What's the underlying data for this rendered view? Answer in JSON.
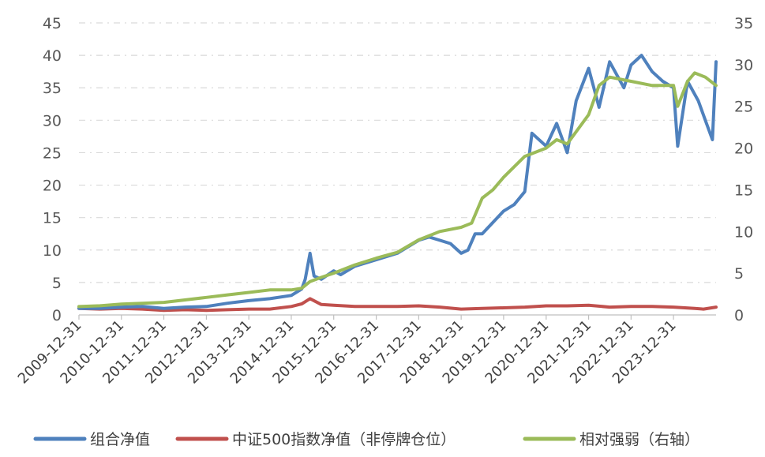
{
  "chart_data": {
    "type": "line",
    "title": "",
    "xlabel": "",
    "ylabel": "",
    "x_tick_labels": [
      "2009-12-31",
      "2010-12-31",
      "2011-12-31",
      "2012-12-31",
      "2013-12-31",
      "2014-12-31",
      "2015-12-31",
      "2016-12-31",
      "2017-12-31",
      "2018-12-31",
      "2019-12-31",
      "2020-12-31",
      "2021-12-31",
      "2022-12-31",
      "2023-12-31"
    ],
    "x_range": [
      "2009-12-31",
      "2024-12-31"
    ],
    "ylim_left": [
      0,
      45
    ],
    "yticks_left": [
      0,
      5,
      10,
      15,
      20,
      25,
      30,
      35,
      40,
      45
    ],
    "ylim_right": [
      0,
      35
    ],
    "yticks_right": [
      0,
      5,
      10,
      15,
      20,
      25,
      30,
      35
    ],
    "grid": true,
    "legend_position": "bottom",
    "series": [
      {
        "name": "组合净值",
        "axis": "left",
        "color": "#4f81bd",
        "x": [
          "2009-12-31",
          "2010-06-30",
          "2010-12-31",
          "2011-06-30",
          "2011-12-31",
          "2012-06-30",
          "2012-12-31",
          "2013-06-30",
          "2013-12-31",
          "2014-06-30",
          "2014-12-31",
          "2015-03-31",
          "2015-04-30",
          "2015-06-10",
          "2015-07-15",
          "2015-09-15",
          "2015-12-31",
          "2016-02-29",
          "2016-06-30",
          "2016-12-31",
          "2017-06-30",
          "2017-12-31",
          "2018-03-31",
          "2018-06-30",
          "2018-09-30",
          "2018-12-31",
          "2019-02-28",
          "2019-04-30",
          "2019-06-30",
          "2019-12-31",
          "2020-03-31",
          "2020-06-30",
          "2020-08-31",
          "2020-12-31",
          "2021-03-31",
          "2021-06-30",
          "2021-09-15",
          "2021-12-31",
          "2022-03-31",
          "2022-06-30",
          "2022-10-31",
          "2022-12-31",
          "2023-03-31",
          "2023-06-30",
          "2023-09-30",
          "2023-12-31",
          "2024-02-05",
          "2024-04-30",
          "2024-07-31",
          "2024-09-30",
          "2024-11-30",
          "2024-12-31"
        ],
        "values": [
          1.0,
          1.0,
          1.2,
          1.3,
          1.0,
          1.2,
          1.3,
          1.8,
          2.2,
          2.5,
          3.0,
          4.0,
          5.5,
          9.5,
          6.0,
          5.5,
          6.8,
          6.2,
          7.5,
          8.5,
          9.5,
          11.5,
          12.0,
          11.5,
          11.0,
          9.5,
          10.0,
          12.5,
          12.5,
          16.0,
          17.0,
          19.0,
          28.0,
          26.0,
          29.5,
          25.0,
          33.0,
          38.0,
          32.0,
          39.0,
          35.0,
          38.5,
          40.0,
          37.5,
          36.0,
          35.0,
          26.0,
          36.0,
          33.0,
          30.0,
          27.0,
          39.0
        ]
      },
      {
        "name": "中证500指数净值（非停牌仓位）",
        "axis": "left",
        "color": "#c0504d",
        "x": [
          "2009-12-31",
          "2010-06-30",
          "2010-12-31",
          "2011-06-30",
          "2011-12-31",
          "2012-06-30",
          "2012-12-31",
          "2013-06-30",
          "2013-12-31",
          "2014-06-30",
          "2014-12-31",
          "2015-03-31",
          "2015-06-10",
          "2015-09-15",
          "2015-12-31",
          "2016-06-30",
          "2016-12-31",
          "2017-06-30",
          "2017-12-31",
          "2018-06-30",
          "2018-12-31",
          "2019-06-30",
          "2019-12-31",
          "2020-06-30",
          "2020-12-31",
          "2021-06-30",
          "2021-12-31",
          "2022-06-30",
          "2022-12-31",
          "2023-06-30",
          "2023-12-31",
          "2024-06-30",
          "2024-09-15",
          "2024-12-31"
        ],
        "values": [
          1.0,
          0.9,
          1.0,
          0.9,
          0.7,
          0.8,
          0.7,
          0.8,
          0.9,
          0.9,
          1.3,
          1.7,
          2.5,
          1.6,
          1.5,
          1.3,
          1.3,
          1.3,
          1.4,
          1.2,
          0.9,
          1.0,
          1.1,
          1.2,
          1.4,
          1.4,
          1.5,
          1.2,
          1.3,
          1.3,
          1.2,
          1.0,
          0.9,
          1.2
        ]
      },
      {
        "name": "相对强弱（右轴）",
        "axis": "right",
        "color": "#9bbb59",
        "x": [
          "2009-12-31",
          "2010-06-30",
          "2010-12-31",
          "2011-06-30",
          "2011-12-31",
          "2012-06-30",
          "2012-12-31",
          "2013-06-30",
          "2013-12-31",
          "2014-06-30",
          "2014-12-31",
          "2015-03-31",
          "2015-06-10",
          "2015-09-15",
          "2015-12-31",
          "2016-06-30",
          "2016-12-31",
          "2017-06-30",
          "2017-12-31",
          "2018-06-30",
          "2018-12-31",
          "2019-03-31",
          "2019-06-30",
          "2019-09-30",
          "2019-12-31",
          "2020-06-30",
          "2020-12-31",
          "2021-03-31",
          "2021-06-30",
          "2021-12-31",
          "2022-03-31",
          "2022-06-30",
          "2022-12-31",
          "2023-06-30",
          "2023-12-31",
          "2024-02-05",
          "2024-04-30",
          "2024-06-30",
          "2024-09-30",
          "2024-12-31"
        ],
        "values": [
          1.0,
          1.1,
          1.3,
          1.4,
          1.5,
          1.8,
          2.1,
          2.4,
          2.7,
          3.0,
          3.0,
          3.2,
          4.0,
          4.5,
          5.0,
          6.0,
          6.8,
          7.5,
          9.0,
          10.0,
          10.5,
          11.0,
          14.0,
          15.0,
          16.5,
          19.0,
          20.0,
          21.0,
          20.5,
          24.0,
          27.5,
          28.5,
          28.0,
          27.5,
          27.5,
          25.0,
          28.0,
          29.0,
          28.5,
          27.5
        ]
      }
    ]
  }
}
